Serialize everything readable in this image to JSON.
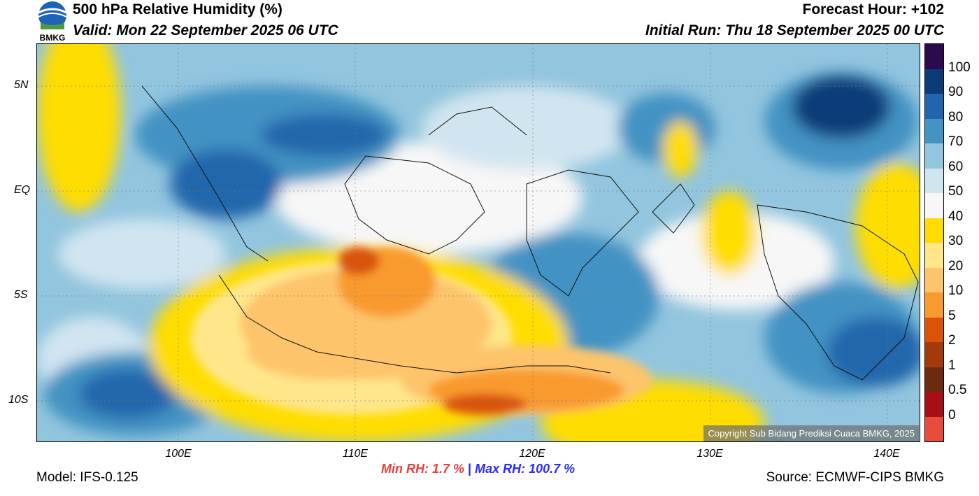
{
  "header": {
    "title": "500 hPa Relative Humidity (%)",
    "valid": "Valid: Mon 22 September 2025 06 UTC",
    "forecast_hour": "Forecast Hour: +102",
    "initial_run": "Initial Run: Thu 18 September 2025 00 UTC",
    "logo_text": "BMKG"
  },
  "axes": {
    "lat_labels": [
      "5N",
      "EQ",
      "5S",
      "10S"
    ],
    "lon_labels": [
      "100E",
      "110E",
      "120E",
      "130E",
      "140E"
    ]
  },
  "colorbar": {
    "labels": [
      "100",
      "90",
      "80",
      "70",
      "60",
      "50",
      "40",
      "30",
      "20",
      "10",
      "5",
      "2",
      "1",
      "0.5",
      "0"
    ],
    "colors": [
      "#2d0a4e",
      "#0b3c78",
      "#2166ac",
      "#4393c3",
      "#92c5de",
      "#d1e5f0",
      "#f7f7f7",
      "#ffdd00",
      "#ffe68a",
      "#fdc46c",
      "#f99a2f",
      "#d9530b",
      "#a23a0c",
      "#6b2b0e",
      "#a50f15",
      "#e74c3c"
    ]
  },
  "stats": {
    "min_rh": "Min RH:   1.7 %",
    "separator": "|",
    "max_rh": "Max RH: 100.7 %",
    "min_color": "#e8413a",
    "max_color": "#2a2aff"
  },
  "footer": {
    "model": "Model: IFS-0.125",
    "source": "Source: ECMWF-CIPS BMKG",
    "copyright": "Copyright Sub Bidang Prediksi Cuaca BMKG, 2025"
  }
}
